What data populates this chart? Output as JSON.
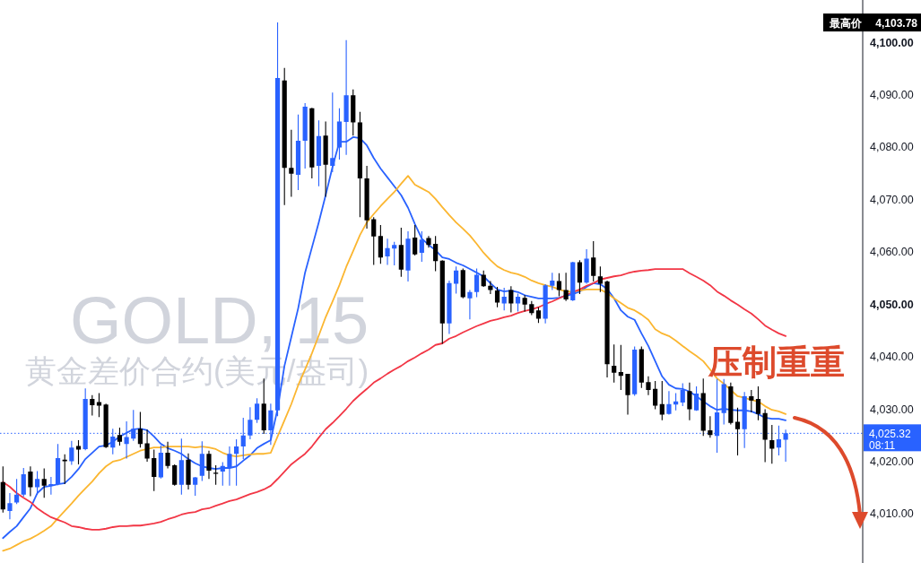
{
  "chart_data": {
    "type": "candlestick",
    "title": "GOLD, 15",
    "subtitle": "黄金差价合约(美元/盎司)",
    "categories": [
      null,
      null,
      null,
      null,
      null,
      null,
      null,
      null,
      null,
      null,
      null,
      null,
      null,
      null,
      null,
      null,
      null,
      null,
      null,
      null,
      null,
      null,
      null,
      null,
      null,
      null,
      null,
      null,
      null,
      null,
      null,
      null,
      null,
      null,
      null,
      null,
      null,
      null,
      null,
      null,
      null,
      null,
      null,
      null,
      null,
      null,
      null,
      null,
      null,
      null,
      null,
      null,
      null,
      null,
      null,
      null,
      null,
      null,
      null,
      null,
      null,
      null,
      null,
      null,
      null,
      null,
      null,
      null,
      null,
      null,
      null,
      null,
      null,
      null,
      null,
      null,
      null,
      null,
      null,
      null,
      null,
      null,
      null,
      null,
      null,
      null,
      null,
      null,
      null,
      null,
      null,
      null,
      null,
      null,
      null,
      null,
      null,
      null,
      null,
      null,
      null,
      null,
      null,
      null,
      null,
      null,
      null,
      null,
      null,
      null,
      null,
      null,
      null,
      null,
      null
    ],
    "ohlc": [
      [
        4016.0,
        4019.0,
        4010.2,
        4010.8
      ],
      [
        4010.5,
        4013.9,
        4008.9,
        4012.0
      ],
      [
        4012.1,
        4016.6,
        4011.8,
        4013.6
      ],
      [
        4013.6,
        4018.7,
        4013.2,
        4017.5
      ],
      [
        4018.0,
        4019.0,
        4013.3,
        4015.0
      ],
      [
        4015.0,
        4018.1,
        4013.6,
        4016.6
      ],
      [
        4016.6,
        4018.6,
        4013.0,
        4015.3
      ],
      [
        4015.3,
        4017.0,
        4013.6,
        4015.6
      ],
      [
        4015.6,
        4023.3,
        4015.4,
        4020.6
      ],
      [
        4020.3,
        4021.3,
        4015.6,
        4020.0
      ],
      [
        4020.0,
        4023.9,
        4019.3,
        4022.6
      ],
      [
        4022.9,
        4024.0,
        4019.4,
        4022.2
      ],
      [
        4022.3,
        4033.9,
        4022.1,
        4031.9
      ],
      [
        4031.9,
        4032.6,
        4028.7,
        4030.7
      ],
      [
        4031.3,
        4033.0,
        4028.4,
        4030.6
      ],
      [
        4030.8,
        4031.0,
        4022.5,
        4022.7
      ],
      [
        4022.6,
        4026.2,
        4021.3,
        4024.7
      ],
      [
        4025.0,
        4026.4,
        4023.0,
        4023.7
      ],
      [
        4023.3,
        4027.6,
        4020.5,
        4024.6
      ],
      [
        4024.3,
        4029.8,
        4023.9,
        4026.2
      ],
      [
        4026.2,
        4029.4,
        4022.6,
        4023.3
      ],
      [
        4023.4,
        4026.0,
        4019.9,
        4020.5
      ],
      [
        4020.6,
        4022.2,
        4014.3,
        4017.0
      ],
      [
        4016.9,
        4023.0,
        4016.7,
        4021.6
      ],
      [
        4021.6,
        4023.7,
        4018.6,
        4019.1
      ],
      [
        4019.2,
        4019.4,
        4015.3,
        4015.5
      ],
      [
        4015.5,
        4024.3,
        4013.6,
        4020.2
      ],
      [
        4020.3,
        4021.5,
        4014.6,
        4015.5
      ],
      [
        4015.5,
        4017.0,
        4013.4,
        4016.9
      ],
      [
        4017.2,
        4023.8,
        4016.2,
        4021.4
      ],
      [
        4021.4,
        4022.0,
        4016.6,
        4018.2
      ],
      [
        4017.8,
        4019.2,
        4015.5,
        4017.6
      ],
      [
        4018.0,
        4019.8,
        4015.3,
        4019.1
      ],
      [
        4018.7,
        4022.8,
        4015.3,
        4021.4
      ],
      [
        4021.4,
        4024.2,
        4015.3,
        4022.8
      ],
      [
        4022.8,
        4028.3,
        4020.4,
        4024.9
      ],
      [
        4024.9,
        4030.3,
        4024.2,
        4027.9
      ],
      [
        4027.9,
        4032.0,
        4027.3,
        4031.0
      ],
      [
        4031.0,
        4035.8,
        4025.2,
        4025.9
      ],
      [
        4025.9,
        4031.0,
        4023.1,
        4029.7
      ],
      [
        4029.7,
        4103.78,
        4028.6,
        4093.2
      ],
      [
        4092.7,
        4095.1,
        4068.9,
        4076.0
      ],
      [
        4076.0,
        4083.3,
        4070.5,
        4074.9
      ],
      [
        4074.7,
        4086.2,
        4071.8,
        4081.2
      ],
      [
        4081.2,
        4088.4,
        4075.9,
        4087.7
      ],
      [
        4087.4,
        4087.5,
        4074.0,
        4076.1
      ],
      [
        4076.4,
        4085.1,
        4072.5,
        4082.1
      ],
      [
        4082.2,
        4084.9,
        4070.5,
        4076.6
      ],
      [
        4076.4,
        4090.4,
        4075.2,
        4077.9
      ],
      [
        4079.9,
        4087.4,
        4077.6,
        4084.9
      ],
      [
        4084.8,
        4100.4,
        4078.5,
        4089.9
      ],
      [
        4089.9,
        4091.0,
        4082.2,
        4084.7
      ],
      [
        4084.7,
        4086.7,
        4066.6,
        4074.0
      ],
      [
        4074.0,
        4076.4,
        4064.4,
        4066.0
      ],
      [
        4066.2,
        4066.6,
        4057.5,
        4062.9
      ],
      [
        4063.0,
        4065.1,
        4057.7,
        4058.9
      ],
      [
        4059.1,
        4062.5,
        4057.5,
        4060.7
      ],
      [
        4060.6,
        4061.9,
        4057.4,
        4061.3
      ],
      [
        4061.3,
        4064.6,
        4055.2,
        4056.6
      ],
      [
        4056.4,
        4063.9,
        4054.3,
        4062.5
      ],
      [
        4062.7,
        4065.1,
        4059.3,
        4059.5
      ],
      [
        4059.8,
        4063.9,
        4058.1,
        4062.3
      ],
      [
        4062.6,
        4063.0,
        4060.8,
        4061.3
      ],
      [
        4061.5,
        4063.0,
        4056.3,
        4058.2
      ],
      [
        4058.3,
        4058.4,
        4042.4,
        4046.3
      ],
      [
        4046.3,
        4054.5,
        4044.3,
        4054.0
      ],
      [
        4053.9,
        4057.2,
        4052.0,
        4056.4
      ],
      [
        4056.5,
        4056.8,
        4051.1,
        4051.3
      ],
      [
        4051.1,
        4052.7,
        4047.1,
        4052.3
      ],
      [
        4052.3,
        4056.8,
        4051.3,
        4055.6
      ],
      [
        4055.6,
        4056.4,
        4053.3,
        4053.4
      ],
      [
        4053.5,
        4054.4,
        4051.9,
        4052.7
      ],
      [
        4052.6,
        4053.3,
        4049.4,
        4050.3
      ],
      [
        4050.1,
        4053.1,
        4048.8,
        4051.4
      ],
      [
        4052.7,
        4053.4,
        4048.4,
        4050.1
      ],
      [
        4050.1,
        4052.0,
        4048.6,
        4051.4
      ],
      [
        4051.2,
        4051.7,
        4048.6,
        4049.9
      ],
      [
        4050.0,
        4050.6,
        4047.9,
        4048.3
      ],
      [
        4048.8,
        4049.4,
        4046.4,
        4047.2
      ],
      [
        4047.2,
        4053.8,
        4046.3,
        4053.6
      ],
      [
        4053.5,
        4056.0,
        4052.7,
        4054.5
      ],
      [
        4054.4,
        4055.9,
        4051.5,
        4052.7
      ],
      [
        4052.7,
        4056.0,
        4050.6,
        4050.9
      ],
      [
        4050.7,
        4058.1,
        4050.6,
        4058.0
      ],
      [
        4058.0,
        4058.4,
        4051.9,
        4054.1
      ],
      [
        4054.1,
        4060.5,
        4053.9,
        4058.7
      ],
      [
        4058.9,
        4062.0,
        4054.3,
        4055.4
      ],
      [
        4055.3,
        4057.2,
        4052.3,
        4053.9
      ],
      [
        4054.3,
        4054.5,
        4036.0,
        4038.5
      ],
      [
        4038.2,
        4042.3,
        4035.0,
        4036.9
      ],
      [
        4037.0,
        4042.2,
        4033.6,
        4036.3
      ],
      [
        4036.7,
        4036.7,
        4028.9,
        4032.6
      ],
      [
        4032.8,
        4041.9,
        4032.5,
        4041.3
      ],
      [
        4041.4,
        4041.9,
        4034.0,
        4035.0
      ],
      [
        4035.1,
        4036.2,
        4032.6,
        4033.6
      ],
      [
        4033.8,
        4035.3,
        4029.9,
        4030.6
      ],
      [
        4030.9,
        4035.3,
        4027.8,
        4028.9
      ],
      [
        4029.0,
        4033.4,
        4028.9,
        4030.9
      ],
      [
        4030.8,
        4033.0,
        4029.7,
        4031.4
      ],
      [
        4031.2,
        4034.9,
        4030.5,
        4033.6
      ],
      [
        4033.4,
        4035.0,
        4027.8,
        4029.9
      ],
      [
        4029.7,
        4034.3,
        4029.6,
        4032.9
      ],
      [
        4033.0,
        4035.8,
        4024.8,
        4025.8
      ],
      [
        4025.9,
        4028.6,
        4024.5,
        4025.0
      ],
      [
        4024.8,
        4035.7,
        4021.6,
        4029.3
      ],
      [
        4029.2,
        4035.7,
        4027.0,
        4034.7
      ],
      [
        4034.3,
        4035.0,
        4027.0,
        4027.3
      ],
      [
        4027.5,
        4030.2,
        4021.1,
        4026.1
      ],
      [
        4026.1,
        4033.2,
        4022.5,
        4032.4
      ],
      [
        4032.4,
        4033.6,
        4029.3,
        4031.6
      ],
      [
        4031.9,
        4034.3,
        4027.8,
        4029.0
      ],
      [
        4029.2,
        4029.9,
        4019.8,
        4024.1
      ],
      [
        4024.0,
        4026.9,
        4019.5,
        4022.4
      ],
      [
        4022.6,
        4026.8,
        4021.1,
        4024.2
      ],
      [
        4024.1,
        4026.0,
        4019.9,
        4025.32
      ]
    ],
    "colors": [
      "#000000",
      "#2962ff",
      "#2962ff",
      "#2962ff",
      "#000000",
      "#2962ff",
      "#000000",
      "#2962ff",
      "#2962ff",
      "#000000",
      "#2962ff",
      "#000000",
      "#2962ff",
      "#000000",
      "#000000",
      "#000000",
      "#2962ff",
      "#000000",
      "#2962ff",
      "#2962ff",
      "#000000",
      "#000000",
      "#000000",
      "#2962ff",
      "#000000",
      "#000000",
      "#2962ff",
      "#000000",
      "#2962ff",
      "#2962ff",
      "#000000",
      "#000000",
      "#2962ff",
      "#2962ff",
      "#2962ff",
      "#2962ff",
      "#2962ff",
      "#2962ff",
      "#000000",
      "#2962ff",
      "#2962ff",
      "#000000",
      "#000000",
      "#2962ff",
      "#2962ff",
      "#000000",
      "#2962ff",
      "#000000",
      "#2962ff",
      "#2962ff",
      "#2962ff",
      "#000000",
      "#000000",
      "#000000",
      "#000000",
      "#000000",
      "#2962ff",
      "#2962ff",
      "#000000",
      "#2962ff",
      "#000000",
      "#2962ff",
      "#000000",
      "#000000",
      "#000000",
      "#2962ff",
      "#2962ff",
      "#000000",
      "#2962ff",
      "#2962ff",
      "#000000",
      "#000000",
      "#000000",
      "#2962ff",
      "#000000",
      "#2962ff",
      "#000000",
      "#000000",
      "#000000",
      "#2962ff",
      "#2962ff",
      "#000000",
      "#000000",
      "#2962ff",
      "#000000",
      "#2962ff",
      "#000000",
      "#000000",
      "#000000",
      "#000000",
      "#000000",
      "#000000",
      "#2962ff",
      "#000000",
      "#000000",
      "#000000",
      "#000000",
      "#2962ff",
      "#2962ff",
      "#2962ff",
      "#000000",
      "#2962ff",
      "#000000",
      "#000000",
      "#2962ff",
      "#2962ff",
      "#000000",
      "#000000",
      "#2962ff",
      "#000000",
      "#000000",
      "#000000",
      "#000000",
      "#2962ff",
      "#2962ff"
    ],
    "series": [
      {
        "type": "line",
        "color": "#2962ff",
        "values": [
          4005.3,
          4006.5,
          4007.6,
          4009.3,
          4011.0,
          4013.9,
          4015.1,
          4015.3,
          4015.6,
          4015.8,
          4017.0,
          4018.5,
          4020.4,
          4021.6,
          4022.8,
          4023.0,
          4023.7,
          4024.7,
          4025.4,
          4026.1,
          4026.2,
          4025.9,
          4024.7,
          4023.3,
          4022.5,
          4022.0,
          4021.4,
          4020.4,
          4019.6,
          4019.0,
          4018.7,
          4018.5,
          4018.7,
          4018.7,
          4019.0,
          4020.1,
          4021.1,
          4022.5,
          4023.3,
          4024.0,
          4030.0,
          4038.2,
          4043.7,
          4049.2,
          4056.0,
          4060.8,
          4065.6,
          4070.8,
          4076.2,
          4081.0,
          4081.0,
          4081.9,
          4081.7,
          4080.3,
          4077.9,
          4075.9,
          4074.2,
          4072.5,
          4070.8,
          4068.4,
          4065.3,
          4062.5,
          4061.3,
          4060.3,
          4058.9,
          4058.6,
          4057.9,
          4057.4,
          4056.7,
          4056.0,
          4055.3,
          4054.0,
          4052.8,
          4052.4,
          4052.6,
          4052.3,
          4051.7,
          4051.4,
          4051.1,
          4051.1,
          4051.1,
          4051.2,
          4051.6,
          4051.9,
          4052.4,
          4053.3,
          4054.0,
          4053.8,
          4052.9,
          4051.1,
          4048.8,
          4047.6,
          4047.0,
          4044.4,
          4042.0,
          4039.1,
          4036.2,
          4034.6,
          4033.9,
          4033.8,
          4033.3,
          4032.4,
          4031.4,
          4030.5,
          4029.8,
          4030.0,
          4029.8,
          4029.7,
          4029.7,
          4029.5,
          4029.0,
          4028.3,
          4028.1,
          4028.1,
          4027.8
        ]
      },
      {
        "type": "line",
        "color": "#fbb630",
        "values": [
          4002.9,
          4003.3,
          4004.0,
          4004.7,
          4005.2,
          4005.9,
          4006.7,
          4007.6,
          4009.1,
          4010.5,
          4011.9,
          4013.4,
          4014.8,
          4016.1,
          4017.7,
          4019.0,
          4019.9,
          4020.2,
          4020.8,
          4021.4,
          4022.0,
          4022.3,
          4022.6,
          4022.6,
          4022.8,
          4022.8,
          4022.8,
          4022.8,
          4022.6,
          4022.8,
          4022.6,
          4022.3,
          4021.6,
          4021.1,
          4020.9,
          4021.1,
          4021.3,
          4021.4,
          4021.4,
          4021.6,
          4024.7,
          4027.8,
          4030.9,
          4034.5,
          4037.5,
          4040.6,
          4044.0,
          4047.5,
          4050.5,
          4053.6,
          4057.1,
          4060.1,
          4063.2,
          4065.6,
          4067.2,
          4068.7,
          4070.1,
          4071.4,
          4073.0,
          4074.5,
          4072.8,
          4072.1,
          4071.4,
          4070.1,
          4068.5,
          4067.0,
          4065.6,
          4064.4,
          4063.1,
          4061.5,
          4059.8,
          4058.4,
          4057.2,
          4056.5,
          4056.0,
          4055.7,
          4055.2,
          4054.5,
          4054.0,
          4053.6,
          4053.3,
          4052.8,
          4052.4,
          4052.4,
          4052.6,
          4052.8,
          4052.8,
          4052.8,
          4052.1,
          4051.1,
          4050.2,
          4049.3,
          4048.8,
          4048.0,
          4047.0,
          4045.2,
          4044.4,
          4043.9,
          4043.0,
          4042.0,
          4041.0,
          4040.1,
          4039.1,
          4037.5,
          4035.8,
          4034.8,
          4033.6,
          4032.4,
          4032.1,
          4031.7,
          4031.4,
          4030.5,
          4029.8,
          4029.5,
          4029.0
        ]
      },
      {
        "type": "line",
        "color": "#f23645",
        "values": [
          4016.0,
          4015.1,
          4013.9,
          4013.0,
          4012.2,
          4011.0,
          4010.1,
          4009.3,
          4008.8,
          4008.3,
          4007.6,
          4007.4,
          4007.1,
          4006.9,
          4006.9,
          4007.1,
          4007.4,
          4007.6,
          4007.6,
          4007.7,
          4007.7,
          4007.9,
          4008.1,
          4008.4,
          4008.9,
          4009.3,
          4009.8,
          4010.1,
          4010.3,
          4010.8,
          4011.0,
          4011.5,
          4011.9,
          4012.4,
          4012.7,
          4013.2,
          4013.7,
          4014.1,
          4014.6,
          4015.3,
          4016.6,
          4018.0,
          4019.4,
          4020.4,
          4021.4,
          4022.8,
          4024.5,
          4026.1,
          4027.3,
          4028.6,
          4030.0,
          4031.5,
          4032.7,
          4033.8,
          4035.0,
          4035.8,
          4036.7,
          4037.5,
          4038.2,
          4039.1,
          4039.8,
          4040.6,
          4041.3,
          4042.2,
          4042.5,
          4043.4,
          4043.9,
          4044.6,
          4045.2,
          4045.8,
          4046.3,
          4046.8,
          4047.1,
          4047.5,
          4047.8,
          4048.3,
          4048.7,
          4049.0,
          4049.4,
          4050.0,
          4050.5,
          4051.1,
          4051.7,
          4052.3,
          4052.8,
          4053.5,
          4054.0,
          4054.7,
          4055.0,
          4055.3,
          4055.5,
          4055.9,
          4056.2,
          4056.4,
          4056.5,
          4056.7,
          4056.7,
          4056.7,
          4056.7,
          4056.7,
          4055.9,
          4055.2,
          4054.5,
          4053.6,
          4052.4,
          4051.6,
          4050.7,
          4049.9,
          4049.0,
          4048.2,
          4047.1,
          4045.9,
          4045.1,
          4044.4,
          4043.9
        ]
      }
    ],
    "ylim": [
      4000.55,
      4108.08
    ],
    "yticks": [
      {
        "value": 4010,
        "label": "4,010.00"
      },
      {
        "value": 4020,
        "label": "4,020.00"
      },
      {
        "value": 4030,
        "label": "4,030.00"
      },
      {
        "value": 4040,
        "label": "4,040.00"
      },
      {
        "value": 4050,
        "label": "4,050.00"
      },
      {
        "value": 4060,
        "label": "4,060.00"
      },
      {
        "value": 4070,
        "label": "4,070.00"
      },
      {
        "value": 4080,
        "label": "4,080.00"
      },
      {
        "value": 4090,
        "label": "4,090.00"
      },
      {
        "value": 4100,
        "label": "4,100.00"
      }
    ],
    "tick_labels": "y",
    "ref_lines": [
      {
        "axis": "y",
        "value": 4025.32,
        "label": "4,025.32\n08:11",
        "color": "#2962ff",
        "line_style": "dotted"
      }
    ],
    "annotations": [
      "最高价 4,103.78",
      "压制重重"
    ]
  }
}
